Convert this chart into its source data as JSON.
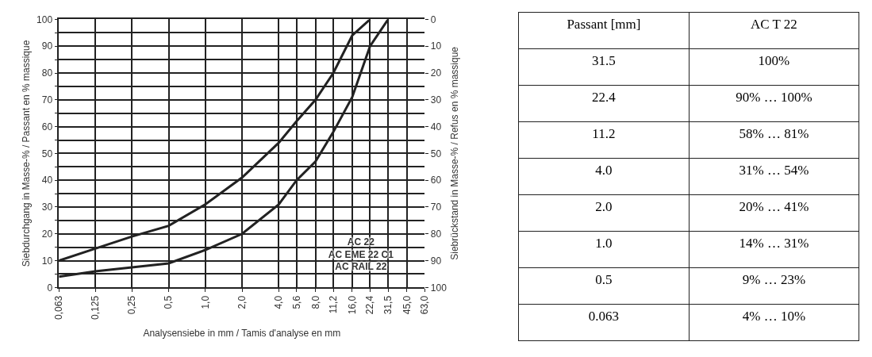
{
  "chart_data": [
    {
      "type": "line",
      "xlabel": "Analysensiebe in mm / Tamis d'analyse en mm",
      "ylabel": "Siebdurchgang in Masse-% / Passant en % massique",
      "y2label": "Siebrückstand in Masse-% / Refus en % massique",
      "log": "x",
      "grid": true,
      "marker": "none",
      "line_style": "solid",
      "xlim": [
        0.063,
        63
      ],
      "xticks": [
        {
          "value": 0.063,
          "label": "0,063"
        },
        {
          "value": 0.125,
          "label": "0,125"
        },
        {
          "value": 0.25,
          "label": "0,25"
        },
        {
          "value": 0.5,
          "label": "0,5"
        },
        {
          "value": 1,
          "label": "1,0"
        },
        {
          "value": 2,
          "label": "2,0"
        },
        {
          "value": 4,
          "label": "4,0"
        },
        {
          "value": 5.6,
          "label": "5,6"
        },
        {
          "value": 8,
          "label": "8,0"
        },
        {
          "value": 11.2,
          "label": "11,2"
        },
        {
          "value": 16,
          "label": "16,0"
        },
        {
          "value": 22.4,
          "label": "22,4"
        },
        {
          "value": 31.5,
          "label": "31,5"
        },
        {
          "value": 45,
          "label": "45,0"
        },
        {
          "value": 63,
          "label": "63,0"
        }
      ],
      "ylim": [
        0,
        100
      ],
      "yticks": [
        0,
        {
          "value": 5,
          "label": null
        },
        10,
        {
          "value": 15,
          "label": null
        },
        20,
        {
          "value": 25,
          "label": null
        },
        30,
        {
          "value": 35,
          "label": null
        },
        40,
        {
          "value": 45,
          "label": null
        },
        50,
        {
          "value": 55,
          "label": null
        },
        60,
        {
          "value": 65,
          "label": null
        },
        70,
        {
          "value": 75,
          "label": null
        },
        80,
        {
          "value": 85,
          "label": null
        },
        90,
        {
          "value": 95,
          "label": null
        },
        100
      ],
      "y2lim": [
        100,
        0
      ],
      "y2ticks": [
        0,
        10,
        20,
        30,
        40,
        50,
        60,
        70,
        80,
        90,
        100
      ],
      "series": [
        {
          "color": "#222222",
          "x": [
            0.063,
            0.125,
            0.25,
            0.5,
            1,
            2,
            4,
            5.6,
            8,
            11.2,
            16,
            22.4
          ],
          "values": [
            10,
            14.5,
            19,
            23,
            31,
            41,
            54,
            62,
            70,
            80,
            94,
            100
          ]
        },
        {
          "color": "#222222",
          "x": [
            0.063,
            0.125,
            0.25,
            0.5,
            1,
            2,
            4,
            5.6,
            8,
            11.2,
            16,
            22.4,
            31.5
          ],
          "values": [
            4,
            6,
            7.5,
            9,
            14,
            20,
            31,
            40,
            47,
            58,
            71,
            90,
            100
          ]
        }
      ],
      "annotations": [
        "AC 22\nAC EME 22 C1\nAC RAIL 22"
      ]
    },
    {
      "type": "other",
      "annotations": [
        "Passant [mm]",
        "AC T 22",
        "31.5",
        "100%",
        "22.4",
        "90% … 100%",
        "11.2",
        "58% … 81%",
        "4.0",
        "31% … 54%",
        "2.0",
        "20% … 41%",
        "1.0",
        "14% … 31%",
        "0.5",
        "9% … 23%",
        "0.063",
        "4% … 10%"
      ]
    }
  ]
}
